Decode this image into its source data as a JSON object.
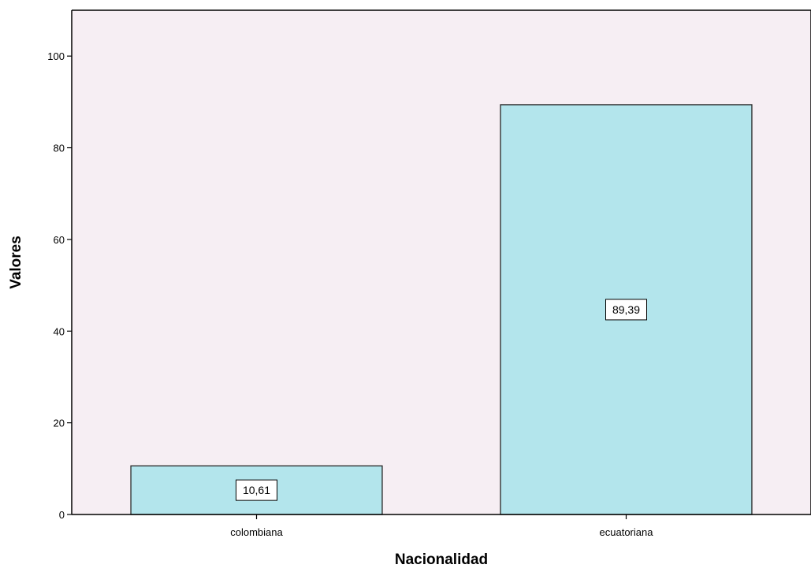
{
  "chart_data": {
    "type": "bar",
    "title": "",
    "xlabel": "Nacionalidad",
    "ylabel": "Valores",
    "categories": [
      "colombiana",
      "ecuatoriana"
    ],
    "values": [
      10.61,
      89.39
    ],
    "data_labels": [
      "10,61",
      "89,39"
    ],
    "ylim": [
      0,
      110
    ],
    "yticks": [
      0,
      20,
      40,
      60,
      80,
      100
    ],
    "grid": false,
    "legend": "none",
    "colors": {
      "plot_background": "#f6eef3",
      "bar_fill": "#b3e5ec",
      "bar_stroke": "#262626",
      "axis": "#000000"
    }
  }
}
